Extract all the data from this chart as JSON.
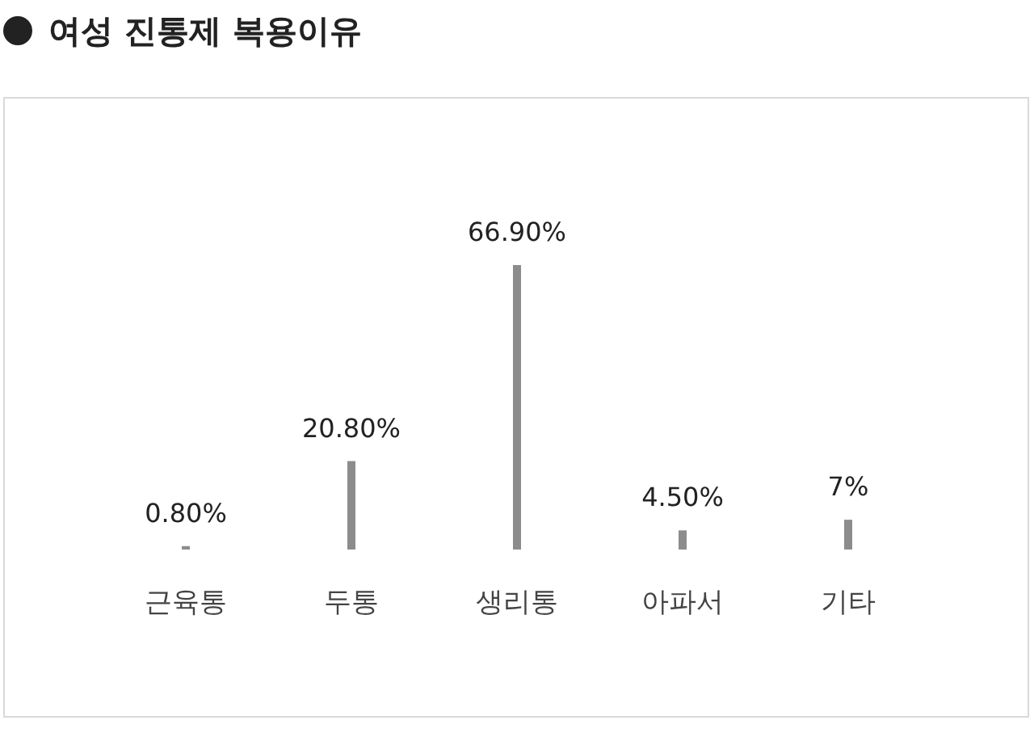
{
  "chart_data": {
    "type": "bar",
    "title": "여성 진통제 복용이유",
    "categories": [
      "근육통",
      "두통",
      "생리통",
      "아파서",
      "기타"
    ],
    "values": [
      0.8,
      20.8,
      66.9,
      4.5,
      7
    ],
    "value_labels": [
      "0.80%",
      "20.80%",
      "66.90%",
      "4.50%",
      "7%"
    ],
    "color": "#8c8c8c"
  }
}
